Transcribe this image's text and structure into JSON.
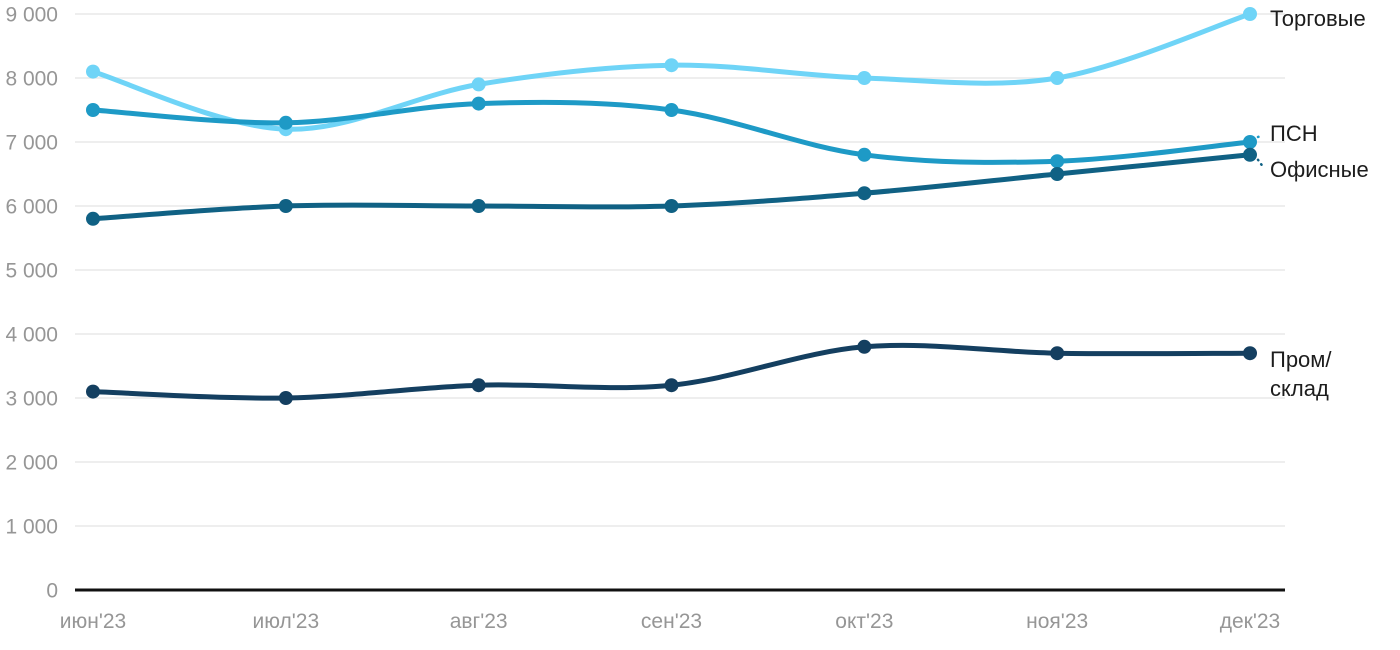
{
  "chart_data": {
    "type": "line",
    "title": "",
    "categories": [
      "июн'23",
      "июл'23",
      "авг'23",
      "сен'23",
      "окт'23",
      "ноя'23",
      "дек'23"
    ],
    "series": [
      {
        "id": "torgovye",
        "name": "Торговые",
        "color": "#6FD4F7",
        "values": [
          8100,
          7200,
          7900,
          8200,
          8000,
          8000,
          9000
        ],
        "label_lines": [
          "Торговые"
        ],
        "label_dy": 4,
        "leader": false
      },
      {
        "id": "psn",
        "name": "ПСН",
        "color": "#1E9AC6",
        "values": [
          7500,
          7300,
          7600,
          7500,
          6800,
          6700,
          7000
        ],
        "label_lines": [
          "ПСН"
        ],
        "label_dy": -9,
        "leader": true
      },
      {
        "id": "ofisnye",
        "name": "Офисные",
        "color": "#106184",
        "values": [
          5800,
          6000,
          6000,
          6000,
          6200,
          6500,
          6800
        ],
        "label_lines": [
          "Офисные"
        ],
        "label_dy": 14,
        "leader": true
      },
      {
        "id": "prom-sklad",
        "name": "Пром/склад",
        "color": "#143F60",
        "values": [
          3100,
          3000,
          3200,
          3200,
          3800,
          3700,
          3700
        ],
        "label_lines": [
          "Пром/",
          "склад"
        ],
        "label_dy": 6,
        "leader": false
      }
    ],
    "y_ticks": [
      {
        "value": 0,
        "label": "0"
      },
      {
        "value": 1000,
        "label": "1 000"
      },
      {
        "value": 2000,
        "label": "2 000"
      },
      {
        "value": 3000,
        "label": "3 000"
      },
      {
        "value": 4000,
        "label": "4 000"
      },
      {
        "value": 5000,
        "label": "5 000"
      },
      {
        "value": 6000,
        "label": "6 000"
      },
      {
        "value": 7000,
        "label": "7 000"
      },
      {
        "value": 8000,
        "label": "8 000"
      },
      {
        "value": 9000,
        "label": "9 000"
      }
    ],
    "ylim": [
      0,
      9000
    ],
    "grid": true,
    "legend_position": "right-of-line-end",
    "colors": {
      "grid": "#E8E8E8",
      "axis": "#111111",
      "tick_text": "#969696",
      "label_text": "#1D1D1D"
    }
  }
}
